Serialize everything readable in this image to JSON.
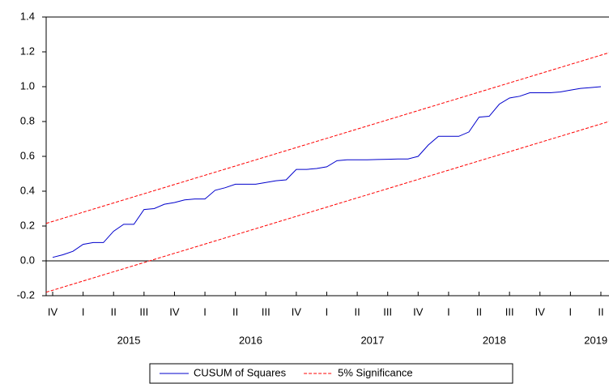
{
  "chart_data": {
    "type": "line",
    "yticks": [
      -0.2,
      {
        "value": 0,
        "label": "0.0"
      },
      0.2,
      0.4,
      0.6,
      0.8,
      {
        "value": 1,
        "label": "1.0"
      },
      1.2,
      1.4
    ],
    "ylim": [
      -0.2,
      1.4
    ],
    "xlim": [
      -0.64,
      54.8
    ],
    "xticks": [
      {
        "value": 0,
        "label": "IV"
      },
      {
        "value": 3,
        "label": "I"
      },
      {
        "value": 6,
        "label": "II"
      },
      {
        "value": 9,
        "label": "III"
      },
      {
        "value": 12,
        "label": "IV"
      },
      {
        "value": 15,
        "label": "I"
      },
      {
        "value": 18,
        "label": "II"
      },
      {
        "value": 21,
        "label": "III"
      },
      {
        "value": 24,
        "label": "IV"
      },
      {
        "value": 27,
        "label": "I"
      },
      {
        "value": 30,
        "label": "II"
      },
      {
        "value": 33,
        "label": "III"
      },
      {
        "value": 36,
        "label": "IV"
      },
      {
        "value": 39,
        "label": "I"
      },
      {
        "value": 42,
        "label": "II"
      },
      {
        "value": 45,
        "label": "III"
      },
      {
        "value": 48,
        "label": "IV"
      },
      {
        "value": 51,
        "label": "I"
      },
      {
        "value": 54,
        "label": "II"
      }
    ],
    "year_ticks": [
      {
        "value": 7.5,
        "label": "2015"
      },
      {
        "value": 19.5,
        "label": "2016"
      },
      {
        "value": 31.5,
        "label": "2017"
      },
      {
        "value": 43.5,
        "label": "2018"
      },
      {
        "value": 53.5,
        "label": "2019"
      }
    ],
    "series": [
      {
        "name": "CUSUM of Squares",
        "color": "#0000cc",
        "dash": false,
        "x": [
          0,
          1,
          2,
          3,
          4,
          5,
          6,
          7,
          8,
          9,
          10,
          11,
          12,
          13,
          14,
          15,
          16,
          17,
          18,
          19,
          20,
          21,
          22,
          23,
          24,
          25,
          26,
          27,
          28,
          29,
          30,
          31,
          32,
          33,
          34,
          35,
          36,
          37,
          38,
          39,
          40,
          41,
          42,
          43,
          44,
          45,
          46,
          47,
          48,
          49,
          50,
          51,
          52,
          53,
          54
        ],
        "values": [
          0.02,
          0.035,
          0.055,
          0.095,
          0.105,
          0.105,
          0.17,
          0.21,
          0.21,
          0.295,
          0.3,
          0.325,
          0.335,
          0.35,
          0.355,
          0.355,
          0.405,
          0.42,
          0.44,
          0.44,
          0.44,
          0.45,
          0.46,
          0.465,
          0.525,
          0.525,
          0.53,
          0.54,
          0.575,
          0.58,
          0.58,
          0.58,
          0.582,
          0.583,
          0.585,
          0.585,
          0.6,
          0.665,
          0.715,
          0.715,
          0.715,
          0.74,
          0.825,
          0.83,
          0.9,
          0.935,
          0.945,
          0.965,
          0.965,
          0.965,
          0.97,
          0.98,
          0.99,
          0.995,
          1.0
        ]
      },
      {
        "name": "5% Significance",
        "color": "#ff0000",
        "dash": true,
        "x": [
          -0.64,
          54.8
        ],
        "values": [
          0.215,
          1.195
        ],
        "lower_values": [
          -0.18,
          0.8
        ]
      }
    ],
    "zero_line": true
  }
}
